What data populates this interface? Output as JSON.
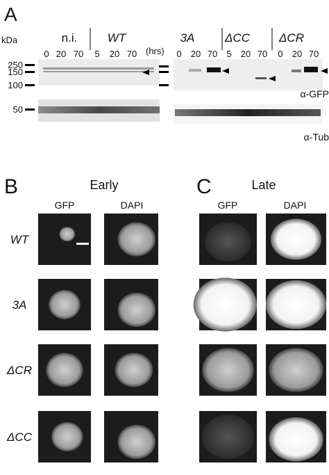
{
  "panel_a": {
    "label": "A",
    "unit": "kDa",
    "markers": [
      "250",
      "150",
      "100",
      "50"
    ],
    "groups": [
      {
        "name": "n.i.",
        "lanes": [
          "0",
          "20",
          "70"
        ]
      },
      {
        "name": "WT",
        "lanes": [
          "5",
          "20",
          "70"
        ]
      },
      {
        "name": "3A",
        "lanes": [
          "0",
          "20",
          "70"
        ]
      },
      {
        "name": "ΔCC",
        "lanes": [
          "5",
          "20",
          "70"
        ]
      },
      {
        "name": "ΔCR",
        "lanes": [
          "0",
          "20",
          "70"
        ]
      }
    ],
    "time_unit": "(hrs)",
    "antibodies": [
      "α-GFP",
      "α-Tub"
    ]
  },
  "panel_b": {
    "label": "B",
    "title": "Early",
    "columns": [
      "GFP",
      "DAPI"
    ],
    "rows": [
      "WT",
      "3A",
      "ΔCR",
      "ΔCC"
    ]
  },
  "panel_c": {
    "label": "C",
    "title": "Late",
    "columns": [
      "GFP",
      "DAPI"
    ]
  }
}
